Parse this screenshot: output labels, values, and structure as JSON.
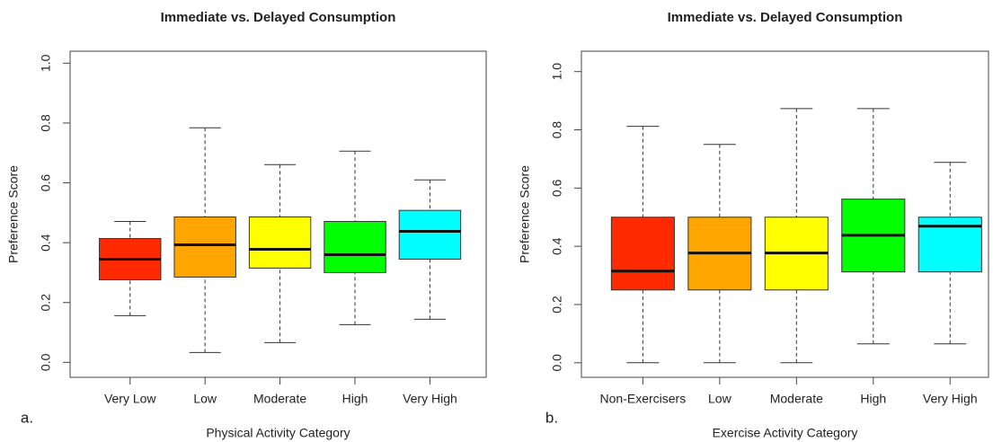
{
  "chart_data": [
    {
      "type": "boxplot",
      "title": "Immediate vs. Delayed Consumption",
      "panel_label": "a.",
      "x_label": "Physical Activity Category",
      "y_label": "Preference Score",
      "categories": [
        "Very Low",
        "Low",
        "Moderate",
        "High",
        "Very High"
      ],
      "colors": [
        "#ff2a00",
        "#ffa500",
        "#ffff00",
        "#00ff00",
        "#00ffff"
      ],
      "min": [
        0.156,
        0.033,
        0.066,
        0.126,
        0.144
      ],
      "q1": [
        0.276,
        0.285,
        0.315,
        0.3,
        0.345
      ],
      "median": [
        0.345,
        0.393,
        0.378,
        0.36,
        0.438
      ],
      "q3": [
        0.414,
        0.486,
        0.486,
        0.471,
        0.508
      ],
      "max": [
        0.471,
        0.784,
        0.661,
        0.706,
        0.61
      ],
      "ylim": [
        -0.05,
        1.04
      ],
      "yticks": [
        {
          "value": 0,
          "label": "0.0"
        },
        0.2,
        0.4,
        0.6,
        0.8,
        {
          "value": 1,
          "label": "1.0"
        }
      ]
    },
    {
      "type": "boxplot",
      "title": "Immediate vs. Delayed Consumption",
      "panel_label": "b.",
      "x_label": "Exercise Activity Category",
      "y_label": "Preference Score",
      "categories": [
        "Non-Exercisers",
        "Low",
        "Moderate",
        "High",
        "Very High"
      ],
      "colors": [
        "#ff2a00",
        "#ffa500",
        "#ffff00",
        "#00ff00",
        "#00ffff"
      ],
      "min": [
        0,
        0,
        0,
        0.065,
        0.065
      ],
      "q1": [
        0.25,
        0.25,
        0.25,
        0.312,
        0.312
      ],
      "median": [
        0.315,
        0.377,
        0.377,
        0.438,
        0.469
      ],
      "q3": [
        0.5,
        0.5,
        0.5,
        0.562,
        0.5
      ],
      "max": [
        0.812,
        0.75,
        0.873,
        0.873,
        0.688
      ],
      "ylim": [
        -0.05,
        1.07
      ],
      "yticks": [
        {
          "value": 0,
          "label": "0.0"
        },
        0.2,
        0.4,
        0.6,
        0.8,
        {
          "value": 1,
          "label": "1.0"
        }
      ]
    }
  ]
}
